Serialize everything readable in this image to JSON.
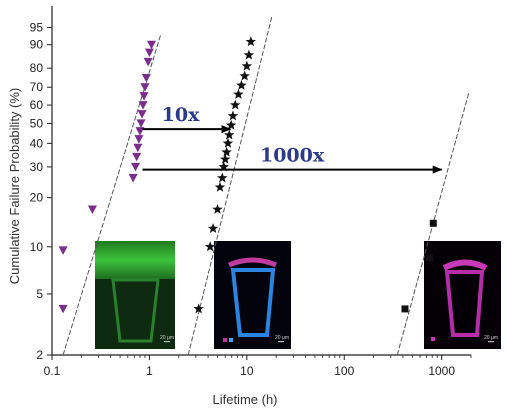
{
  "chart_data": {
    "type": "scatter",
    "title": "",
    "xlabel": "Lifetime (h)",
    "ylabel": "Cumulative Failure Probability (%)",
    "x_scale": "log",
    "y_scale": "weibull-probability",
    "xlim": [
      0.1,
      2000
    ],
    "ylim": [
      2,
      98
    ],
    "x_ticks": [
      0.1,
      1,
      10,
      100,
      1000
    ],
    "x_tick_labels": [
      "0.1",
      "1",
      "10",
      "100",
      "1000"
    ],
    "y_ticks": [
      2,
      5,
      10,
      20,
      30,
      40,
      50,
      60,
      70,
      80,
      90,
      95
    ],
    "y_tick_labels": [
      "2",
      "5",
      "10",
      "20",
      "30",
      "40",
      "50",
      "60",
      "70",
      "80",
      "90",
      "95"
    ],
    "grid": false,
    "legend": "none",
    "series": [
      {
        "marker": "triangle-down",
        "color": "#7b2d8e",
        "points": [
          {
            "x": 0.13,
            "y": 4
          },
          {
            "x": 0.13,
            "y": 9.5
          },
          {
            "x": 0.26,
            "y": 17
          },
          {
            "x": 0.68,
            "y": 26
          },
          {
            "x": 0.72,
            "y": 30
          },
          {
            "x": 0.74,
            "y": 34
          },
          {
            "x": 0.76,
            "y": 38
          },
          {
            "x": 0.78,
            "y": 42
          },
          {
            "x": 0.8,
            "y": 46
          },
          {
            "x": 0.82,
            "y": 50
          },
          {
            "x": 0.84,
            "y": 55
          },
          {
            "x": 0.86,
            "y": 60
          },
          {
            "x": 0.88,
            "y": 65
          },
          {
            "x": 0.9,
            "y": 70
          },
          {
            "x": 0.93,
            "y": 75
          },
          {
            "x": 0.97,
            "y": 83
          },
          {
            "x": 1.0,
            "y": 87
          },
          {
            "x": 1.05,
            "y": 90
          }
        ],
        "fit_line": {
          "x": [
            0.13,
            1.3
          ],
          "y": [
            2,
            93
          ]
        }
      },
      {
        "marker": "star",
        "color": "#111111",
        "points": [
          {
            "x": 3.2,
            "y": 4
          },
          {
            "x": 4.2,
            "y": 10
          },
          {
            "x": 4.5,
            "y": 13
          },
          {
            "x": 5.0,
            "y": 17
          },
          {
            "x": 5.3,
            "y": 23
          },
          {
            "x": 5.6,
            "y": 26
          },
          {
            "x": 5.8,
            "y": 30
          },
          {
            "x": 6.0,
            "y": 33
          },
          {
            "x": 6.2,
            "y": 36
          },
          {
            "x": 6.4,
            "y": 40
          },
          {
            "x": 6.6,
            "y": 44
          },
          {
            "x": 6.9,
            "y": 49
          },
          {
            "x": 7.2,
            "y": 54
          },
          {
            "x": 7.6,
            "y": 60
          },
          {
            "x": 8.2,
            "y": 66
          },
          {
            "x": 8.8,
            "y": 71
          },
          {
            "x": 9.5,
            "y": 76
          },
          {
            "x": 10.0,
            "y": 81
          },
          {
            "x": 10.5,
            "y": 86
          },
          {
            "x": 11.0,
            "y": 91
          }
        ],
        "fit_line": {
          "x": [
            2.5,
            18
          ],
          "y": [
            2,
            97
          ]
        }
      },
      {
        "marker": "square",
        "color": "#111111",
        "points": [
          {
            "x": 420,
            "y": 4
          },
          {
            "x": 750,
            "y": 8.5
          },
          {
            "x": 820,
            "y": 14
          }
        ],
        "fit_line": {
          "x": [
            350,
            1900
          ],
          "y": [
            2,
            67
          ]
        }
      }
    ],
    "annotations": [
      {
        "text": "10x",
        "arrow_from": {
          "x": 0.85,
          "y": 47
        },
        "arrow_to": {
          "x": 6.8,
          "y": 47
        }
      },
      {
        "text": "1000x",
        "arrow_from": {
          "x": 0.85,
          "y": 29
        },
        "arrow_to": {
          "x": 1000,
          "y": 29
        }
      }
    ],
    "insets": [
      {
        "description": "green fluorescence micrograph",
        "scale_bar_text": "20 µm"
      },
      {
        "description": "blue and magenta fluorescence micrograph",
        "scale_bar_text": "20 µm"
      },
      {
        "description": "magenta fluorescence micrograph",
        "scale_bar_text": "20 µm"
      }
    ]
  }
}
